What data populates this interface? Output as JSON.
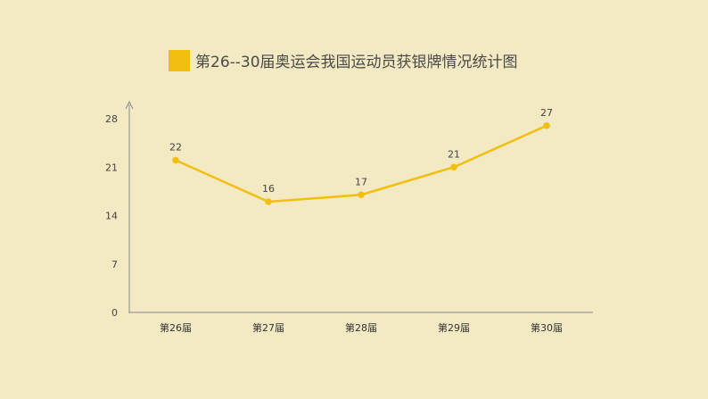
{
  "chart_data": {
    "type": "line",
    "title": "第26--30届奥运会我国运动员获银牌情况统计图",
    "categories": [
      "第26届",
      "第27届",
      "第28届",
      "第29届",
      "第30届"
    ],
    "values": [
      22,
      16,
      17,
      21,
      27
    ],
    "ylim": [
      0,
      28
    ],
    "yticks": [
      "0",
      "7",
      "14",
      "21",
      "28"
    ],
    "grid": false,
    "legend": "none"
  },
  "colors": {
    "background": "#F3E9C2",
    "series": "#F2BE0F",
    "axis": "#8A8A8A"
  }
}
